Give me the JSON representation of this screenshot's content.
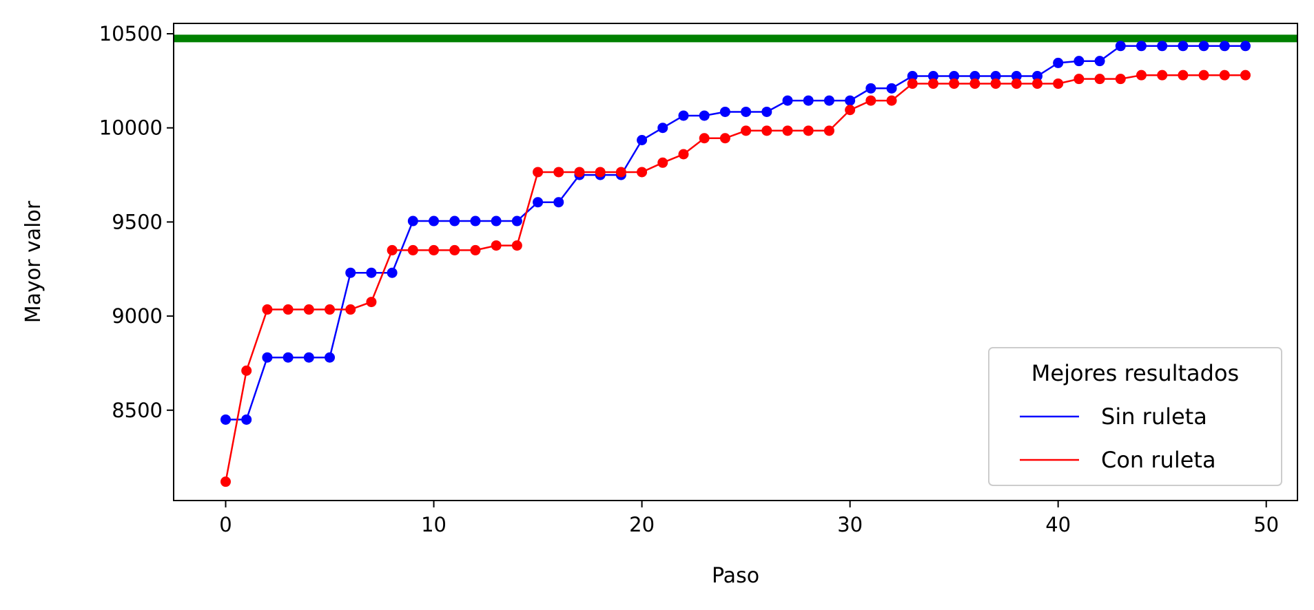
{
  "chart_data": {
    "type": "line",
    "title": "",
    "xlabel": "Paso",
    "ylabel": "Mayor valor",
    "xlim": [
      -2.5,
      51.5
    ],
    "ylim": [
      8020,
      10555
    ],
    "x_ticks": [
      0,
      10,
      20,
      30,
      40,
      50
    ],
    "y_ticks": [
      8500,
      9000,
      9500,
      10000,
      10500
    ],
    "grid": false,
    "reference_line": {
      "y": 10475,
      "color": "#008000"
    },
    "legend": {
      "title": "Mejores resultados",
      "placement": "lower-right",
      "entries": [
        "Sin ruleta",
        "Con ruleta"
      ]
    },
    "x": [
      0,
      1,
      2,
      3,
      4,
      5,
      6,
      7,
      8,
      9,
      10,
      11,
      12,
      13,
      14,
      15,
      16,
      17,
      18,
      19,
      20,
      21,
      22,
      23,
      24,
      25,
      26,
      27,
      28,
      29,
      30,
      31,
      32,
      33,
      34,
      35,
      36,
      37,
      38,
      39,
      40,
      41,
      42,
      43,
      44,
      45,
      46,
      47,
      48,
      49
    ],
    "series": [
      {
        "name": "Sin ruleta",
        "color": "#0000ff",
        "values": [
          8450,
          8450,
          8780,
          8780,
          8780,
          8780,
          9230,
          9230,
          9230,
          9505,
          9505,
          9505,
          9505,
          9505,
          9505,
          9605,
          9605,
          9750,
          9750,
          9750,
          9935,
          10000,
          10065,
          10065,
          10085,
          10085,
          10085,
          10145,
          10145,
          10145,
          10145,
          10210,
          10210,
          10275,
          10275,
          10275,
          10275,
          10275,
          10275,
          10275,
          10345,
          10355,
          10355,
          10435,
          10435,
          10435,
          10435,
          10435,
          10435,
          10435
        ]
      },
      {
        "name": "Con ruleta",
        "color": "#ff0000",
        "values": [
          8120,
          8710,
          9035,
          9035,
          9035,
          9035,
          9035,
          9075,
          9350,
          9350,
          9350,
          9350,
          9350,
          9375,
          9375,
          9765,
          9765,
          9765,
          9765,
          9765,
          9765,
          9815,
          9860,
          9945,
          9945,
          9985,
          9985,
          9985,
          9985,
          9985,
          10095,
          10145,
          10145,
          10235,
          10235,
          10235,
          10235,
          10235,
          10235,
          10235,
          10235,
          10260,
          10260,
          10260,
          10280,
          10280,
          10280,
          10280,
          10280,
          10280
        ]
      }
    ]
  }
}
